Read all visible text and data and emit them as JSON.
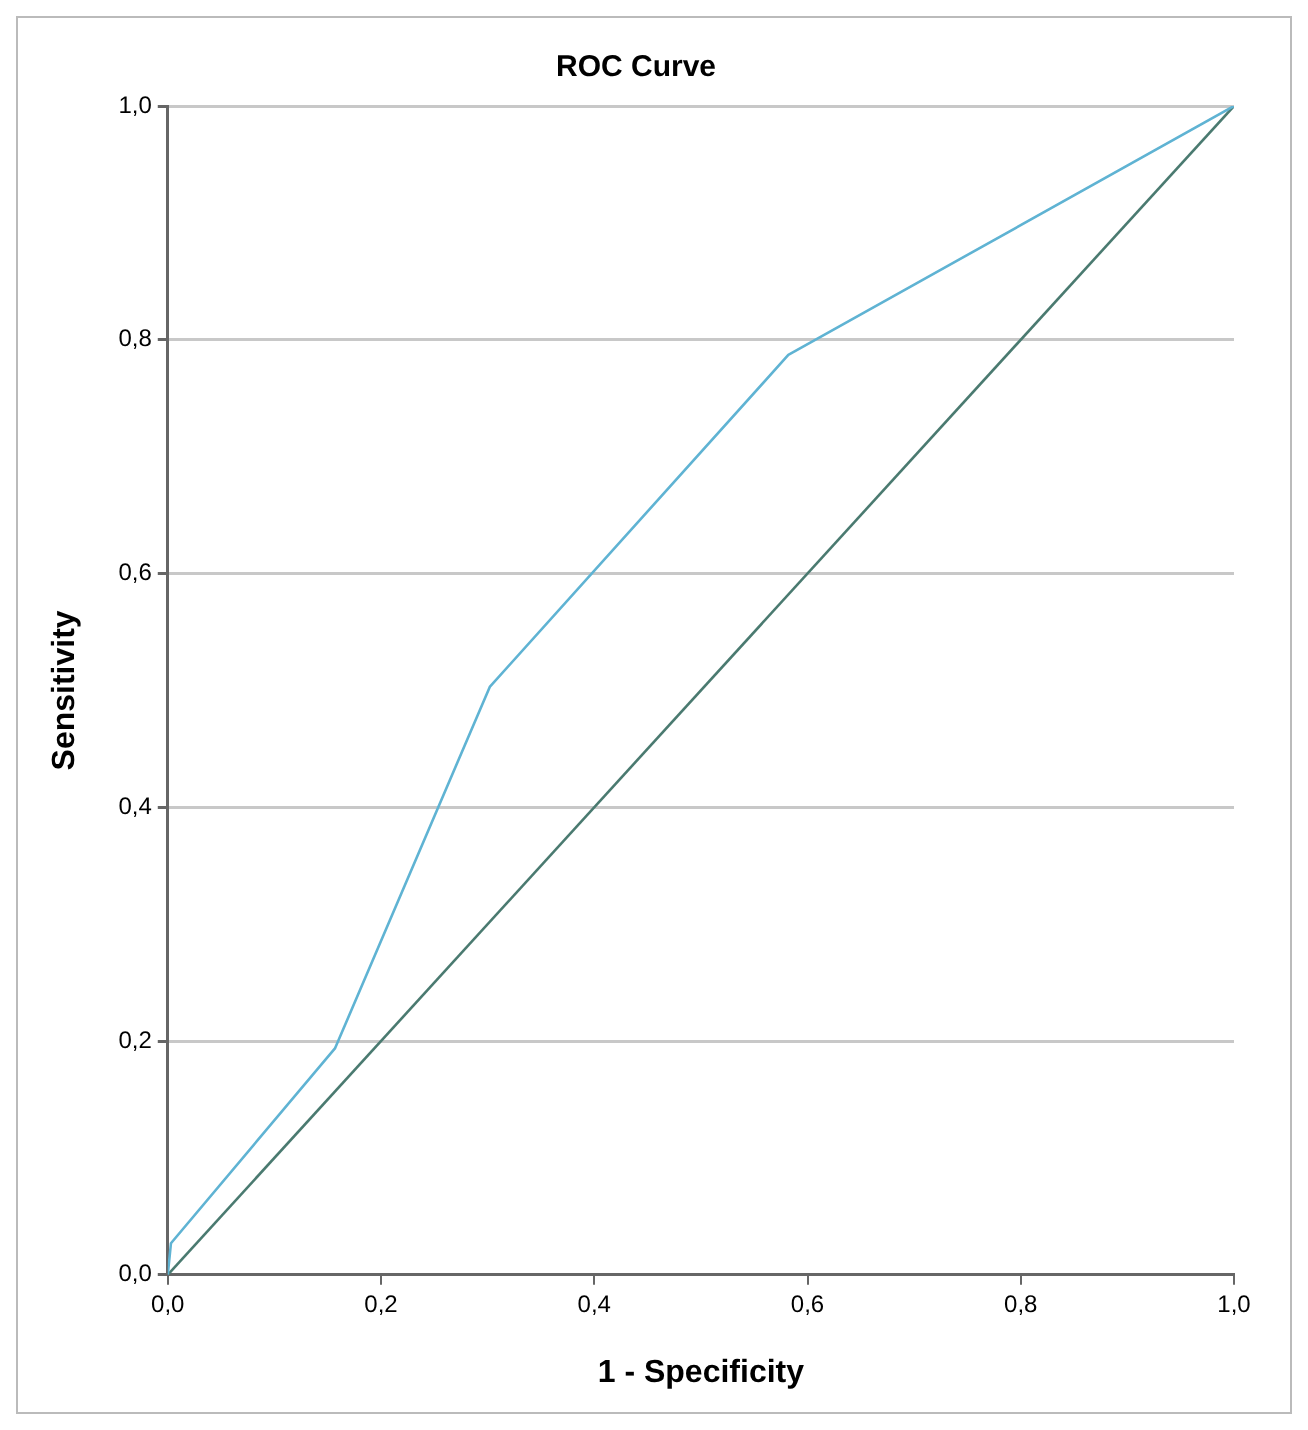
{
  "chart_data": {
    "type": "line",
    "title": "ROC Curve",
    "xlabel": "1 - Specificity",
    "ylabel": "Sensitivity",
    "xlim": [
      0,
      1
    ],
    "ylim": [
      0,
      1
    ],
    "xticks": [
      {
        "value": 0,
        "label": "0,0"
      },
      {
        "value": 0.2,
        "label": "0,2"
      },
      {
        "value": 0.4,
        "label": "0,4"
      },
      {
        "value": 0.6,
        "label": "0,6"
      },
      {
        "value": 0.8,
        "label": "0,8"
      },
      {
        "value": 1,
        "label": "1,0"
      }
    ],
    "yticks": [
      {
        "value": 0,
        "label": "0,0"
      },
      {
        "value": 0.2,
        "label": "0,2"
      },
      {
        "value": 0.4,
        "label": "0,4"
      },
      {
        "value": 0.6,
        "label": "0,6"
      },
      {
        "value": 0.8,
        "label": "0,8"
      },
      {
        "value": 1,
        "label": "1,0"
      }
    ],
    "series": [
      {
        "color": "#5fb3d3",
        "x": [
          0,
          0.003,
          0.157,
          0.302,
          0.582,
          1
        ],
        "values": [
          0,
          0.027,
          0.194,
          0.503,
          0.787,
          1
        ]
      },
      {
        "color": "#4a7a70",
        "x": [
          0,
          1
        ],
        "values": [
          0,
          1
        ]
      }
    ],
    "grid": "y",
    "legend": false,
    "marker": "none",
    "line_style": "solid"
  }
}
